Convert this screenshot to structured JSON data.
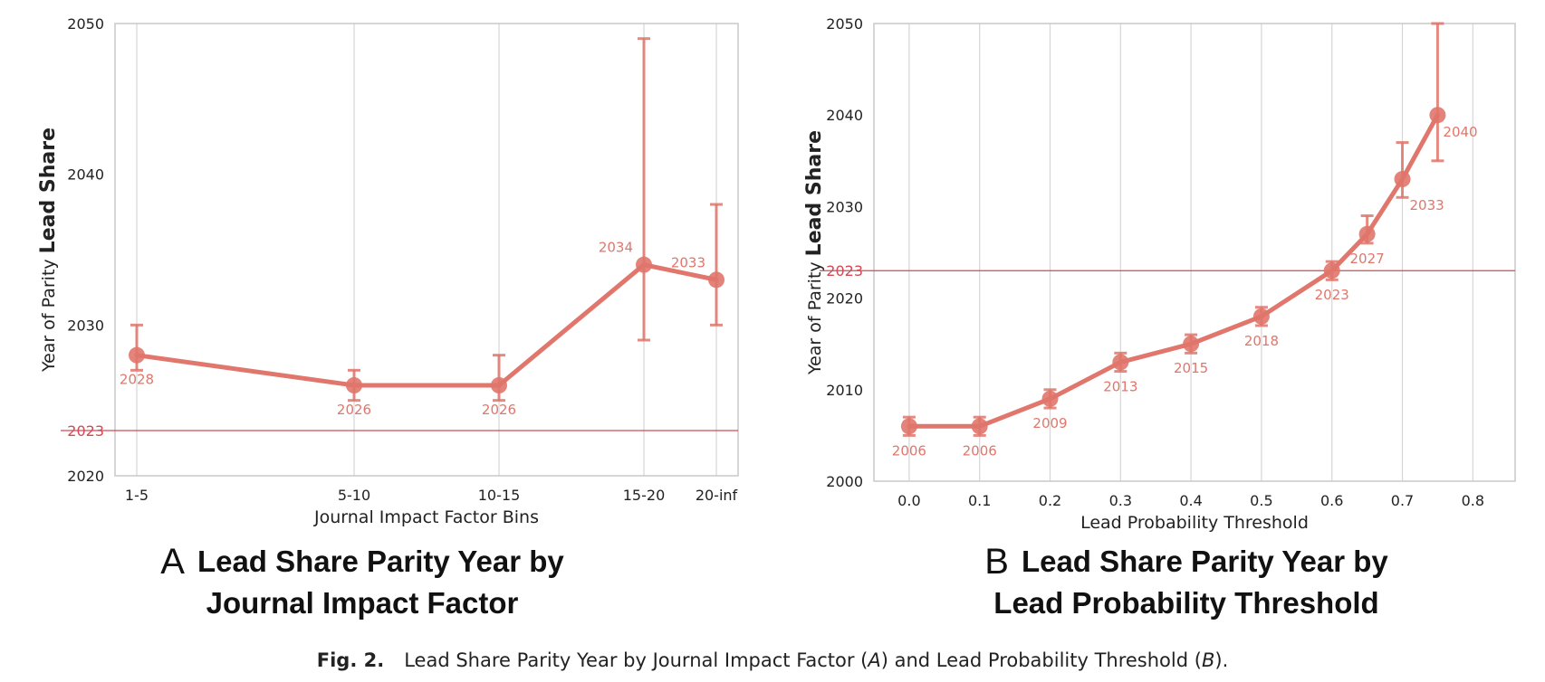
{
  "accent_color": "#e0766c",
  "reference_line_color": "#d14a55",
  "chart_data": [
    {
      "panel_letter": "A",
      "type": "line",
      "title_line1": "Lead Share Parity Year by",
      "title_line2": "Journal Impact Factor",
      "xlabel": "Journal Impact Factor Bins",
      "ylabel_plain": "Year of Parity",
      "ylabel_bold": "Lead Share",
      "ylim": [
        2020,
        2050
      ],
      "yticks": [
        "2020",
        "2030",
        "2040",
        "2050"
      ],
      "reference_line": {
        "value": 2023,
        "label": "2023"
      },
      "grid": "vertical",
      "x_scale": "categorical",
      "categories": [
        "1-5",
        "5-10",
        "10-15",
        "15-20",
        "20-inf"
      ],
      "category_positions": [
        0,
        1.5,
        2.5,
        3.5,
        4
      ],
      "xlim": [
        -0.15,
        4.15
      ],
      "points": [
        {
          "x": "1-5",
          "y": 2028,
          "err_low": 2027,
          "err_high": 2030,
          "label": "2028",
          "label_pos": "below"
        },
        {
          "x": "5-10",
          "y": 2026,
          "err_low": 2025,
          "err_high": 2027,
          "label": "2026",
          "label_pos": "below"
        },
        {
          "x": "10-15",
          "y": 2026,
          "err_low": 2025,
          "err_high": 2028,
          "label": "2026",
          "label_pos": "below"
        },
        {
          "x": "15-20",
          "y": 2034,
          "err_low": 2029,
          "err_high": 2049,
          "label": "2034",
          "label_pos": "above-left"
        },
        {
          "x": "20-inf",
          "y": 2033,
          "err_low": 2030,
          "err_high": 2038,
          "label": "2033",
          "label_pos": "above-left"
        }
      ]
    },
    {
      "panel_letter": "B",
      "type": "line",
      "title_line1": "Lead Share Parity Year by",
      "title_line2": "Lead Probability Threshold",
      "xlabel": "Lead Probability Threshold",
      "ylabel_plain": "Year of Parity",
      "ylabel_bold": "Lead Share",
      "ylim": [
        2000,
        2050
      ],
      "yticks": [
        "2000",
        "2010",
        "2020",
        "2030",
        "2040",
        "2050"
      ],
      "reference_line": {
        "value": 2023,
        "label": "2023"
      },
      "grid": "vertical",
      "x_scale": "linear",
      "xlim": [
        -0.05,
        0.86
      ],
      "xticks": [
        0.0,
        0.1,
        0.2,
        0.3,
        0.4,
        0.5,
        0.6,
        0.7,
        0.8
      ],
      "xtick_labels": [
        "0.0",
        "0.1",
        "0.2",
        "0.3",
        "0.4",
        "0.5",
        "0.6",
        "0.7",
        "0.8"
      ],
      "points": [
        {
          "x": 0.0,
          "y": 2006,
          "err_low": 2005,
          "err_high": 2007,
          "label": "2006",
          "label_pos": "below"
        },
        {
          "x": 0.1,
          "y": 2006,
          "err_low": 2005,
          "err_high": 2007,
          "label": "2006",
          "label_pos": "below"
        },
        {
          "x": 0.2,
          "y": 2009,
          "err_low": 2008,
          "err_high": 2010,
          "label": "2009",
          "label_pos": "below"
        },
        {
          "x": 0.3,
          "y": 2013,
          "err_low": 2012,
          "err_high": 2014,
          "label": "2013",
          "label_pos": "below"
        },
        {
          "x": 0.4,
          "y": 2015,
          "err_low": 2014,
          "err_high": 2016,
          "label": "2015",
          "label_pos": "below"
        },
        {
          "x": 0.5,
          "y": 2018,
          "err_low": 2017,
          "err_high": 2019,
          "label": "2018",
          "label_pos": "below"
        },
        {
          "x": 0.6,
          "y": 2023,
          "err_low": 2022,
          "err_high": 2024,
          "label": "2023",
          "label_pos": "below"
        },
        {
          "x": 0.65,
          "y": 2027,
          "err_low": 2026,
          "err_high": 2029,
          "label": "2027",
          "label_pos": "below"
        },
        {
          "x": 0.7,
          "y": 2033,
          "err_low": 2031,
          "err_high": 2037,
          "label": "2033",
          "label_pos": "below-right"
        },
        {
          "x": 0.75,
          "y": 2040,
          "err_low": 2035,
          "err_high": 2050,
          "label": "2040",
          "label_pos": "right"
        }
      ]
    }
  ],
  "caption": {
    "fig_label": "Fig. 2.",
    "text_1": "Lead Share Parity Year by Journal Impact Factor (",
    "ref_a": "A",
    "text_2": ") and Lead Probability Threshold (",
    "ref_b": "B",
    "text_3": ")."
  }
}
